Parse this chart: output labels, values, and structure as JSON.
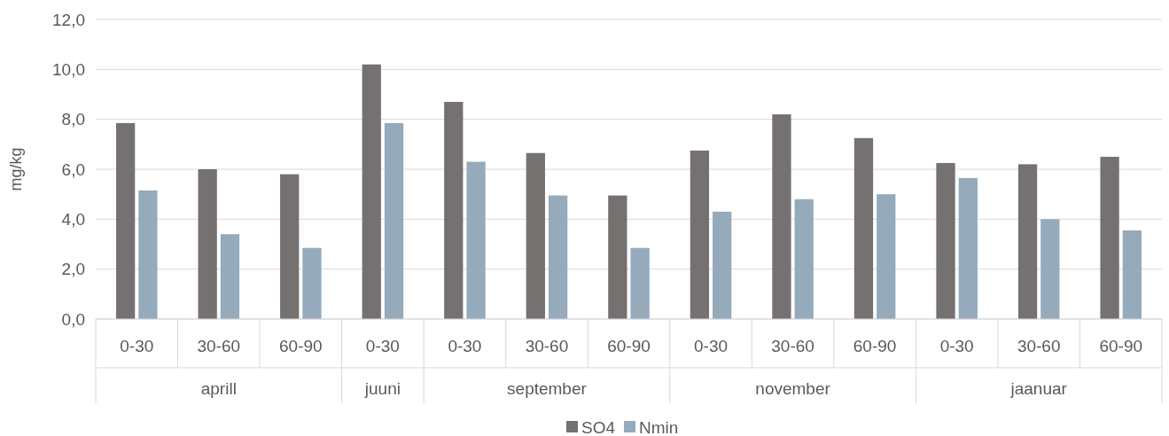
{
  "chart_data": {
    "type": "bar",
    "ylabel": "mg/kg",
    "categories": [
      "0-30",
      "30-60",
      "60-90",
      "0-30",
      "0-30",
      "30-60",
      "60-90",
      "0-30",
      "30-60",
      "60-90",
      "0-30",
      "30-60",
      "60-90"
    ],
    "series": [
      {
        "name": "SO4",
        "color": "#767171",
        "values": [
          7.85,
          6.0,
          5.8,
          10.2,
          8.7,
          6.65,
          4.95,
          6.75,
          8.2,
          7.25,
          6.25,
          6.2,
          6.5
        ]
      },
      {
        "name": "Nmin",
        "color": "#95aabb",
        "values": [
          5.15,
          3.4,
          2.85,
          7.85,
          6.3,
          4.95,
          2.85,
          4.3,
          4.8,
          5.0,
          5.65,
          4.0,
          3.55
        ]
      }
    ],
    "annotations": [
      "aprill",
      "juuni",
      "september",
      "november",
      "jaanuar"
    ],
    "ylim": [
      0,
      12
    ],
    "yticks": [
      {
        "value": 0,
        "label": "0,0"
      },
      {
        "value": 2,
        "label": "2,0"
      },
      {
        "value": 4,
        "label": "4,0"
      },
      {
        "value": 6,
        "label": "6,0"
      },
      {
        "value": 8,
        "label": "8,0"
      },
      {
        "value": 10,
        "label": "10,0"
      },
      {
        "value": 12,
        "label": "12,0"
      }
    ],
    "grid": "y",
    "legend": "bottom"
  }
}
